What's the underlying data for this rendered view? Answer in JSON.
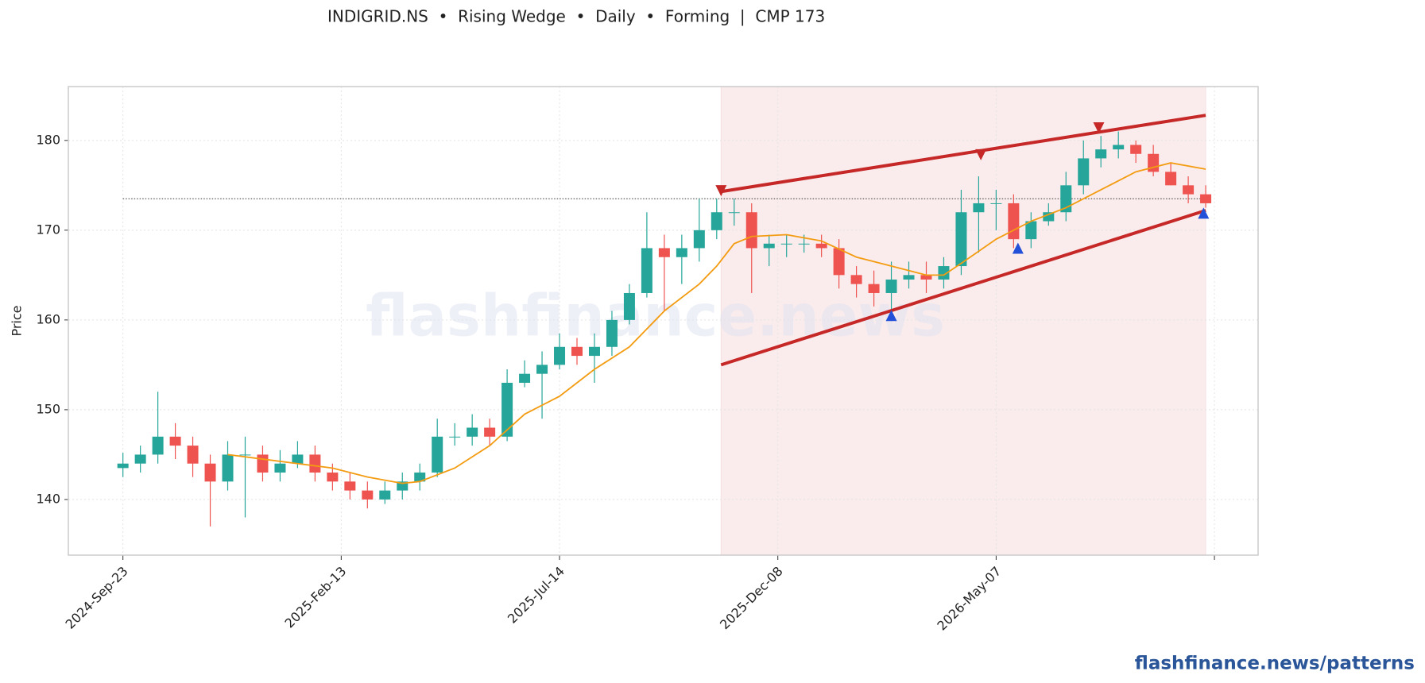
{
  "chart_data": {
    "type": "candlestick",
    "title": "INDIGRID.NS  •  Rising Wedge  •  Daily  •  Forming  |  CMP 173",
    "y_label": "Price",
    "watermark": "flashfinance.news",
    "footer": "flashfinance.news/patterns",
    "x": [
      0,
      8,
      16,
      24,
      32,
      40,
      48,
      56,
      64,
      72,
      80,
      88,
      96,
      104,
      112,
      120,
      128,
      136,
      144,
      152,
      160,
      168,
      176,
      184,
      192,
      200,
      208,
      216,
      224,
      232,
      240,
      248,
      256,
      264,
      272,
      280,
      288,
      296,
      304,
      312,
      320,
      328,
      336,
      344,
      352,
      360,
      368,
      376,
      384,
      392,
      400,
      408,
      416,
      424,
      432,
      440,
      448,
      456,
      464,
      472,
      480,
      488,
      496
    ],
    "open": [
      143.5,
      144,
      145,
      147,
      146,
      144,
      142,
      145,
      145,
      143,
      144,
      145,
      143,
      142,
      141,
      140,
      141,
      142,
      143,
      147,
      147,
      148,
      147,
      153,
      154,
      155,
      157,
      156,
      157,
      160,
      163,
      168,
      167,
      168,
      170,
      172,
      172,
      168,
      168.5,
      168.5,
      168.5,
      168,
      165,
      164,
      163,
      164.5,
      165,
      164.5,
      166,
      172,
      173,
      173,
      169,
      171,
      172,
      175,
      178,
      179,
      179.5,
      178.5,
      176.5,
      175,
      174
    ],
    "high": [
      145.2,
      146,
      152,
      148.5,
      147,
      145,
      146.5,
      147,
      146,
      145.5,
      146.5,
      146,
      144,
      143,
      142,
      142,
      143,
      144,
      149,
      148.5,
      149.5,
      149,
      154.5,
      155.5,
      156.5,
      158.5,
      158,
      158.5,
      161,
      164,
      172,
      169.5,
      169.5,
      173.5,
      173.5,
      173.5,
      173,
      169.5,
      169.5,
      169.5,
      169.5,
      169,
      166,
      165.5,
      166.5,
      166.5,
      166.5,
      167,
      174.5,
      176,
      174.5,
      174,
      172,
      173,
      176.5,
      180,
      180.5,
      181,
      180,
      179.5,
      177.5,
      176,
      175
    ],
    "low": [
      142.5,
      143,
      144,
      144.5,
      142.5,
      137,
      141,
      138,
      142,
      142,
      143.5,
      142,
      141,
      140,
      139,
      139.5,
      140,
      141,
      142.5,
      146,
      146,
      146,
      146.5,
      152.5,
      149,
      154.5,
      155,
      153,
      156,
      159.5,
      162.5,
      161,
      164,
      166.5,
      169,
      170.5,
      163,
      166,
      167,
      167.5,
      167,
      163.5,
      162.5,
      161.5,
      160.5,
      163.5,
      163,
      163.5,
      165,
      167.5,
      170,
      168,
      168,
      170.5,
      171,
      174,
      177,
      178,
      177.5,
      176,
      175,
      173,
      172.5
    ],
    "close": [
      144,
      145,
      147,
      146,
      144,
      142,
      145,
      145,
      143,
      144,
      145,
      143,
      142,
      141,
      140,
      141,
      142,
      143,
      147,
      147,
      148,
      147,
      153,
      154,
      155,
      157,
      156,
      157,
      160,
      163,
      168,
      167,
      168,
      170,
      172,
      172,
      168,
      168.5,
      168.5,
      168.5,
      168,
      165,
      164,
      163,
      164.5,
      165,
      164.5,
      166,
      172,
      173,
      173,
      169,
      171,
      172,
      175,
      178,
      179,
      179.5,
      178.5,
      176.5,
      175,
      174,
      173
    ],
    "up_color": "#26a69a",
    "down_color": "#ef5350",
    "moving_average": {
      "color": "#f39c12",
      "x": [
        48,
        64,
        80,
        96,
        112,
        128,
        136,
        152,
        168,
        184,
        200,
        216,
        232,
        248,
        264,
        272,
        280,
        288,
        304,
        320,
        336,
        352,
        368,
        376,
        384,
        400,
        416,
        432,
        448,
        464,
        480,
        496
      ],
      "values": [
        145,
        144.5,
        144,
        143.5,
        142.5,
        141.8,
        142,
        143.5,
        146,
        149.5,
        151.5,
        154.5,
        157,
        161,
        164,
        166,
        168.5,
        169.3,
        169.5,
        168.8,
        167,
        166,
        165,
        165,
        166.3,
        169,
        171,
        172.5,
        174.5,
        176.5,
        177.5,
        176.8
      ]
    },
    "trendlines": [
      {
        "color": "#c62828",
        "x": [
          274,
          496
        ],
        "values": [
          174.3,
          182.8
        ]
      },
      {
        "color": "#c62828",
        "x": [
          274,
          496
        ],
        "values": [
          155,
          172.2
        ]
      }
    ],
    "pivots_high": {
      "color": "#c62828",
      "x": [
        274,
        393,
        447
      ],
      "values": [
        174.4,
        178.4,
        181.4
      ]
    },
    "pivots_low": {
      "color": "#2350d8",
      "x": [
        352,
        410,
        495
      ],
      "values": [
        160.5,
        168,
        171.9
      ]
    },
    "pattern_range": [
      274,
      496
    ],
    "reference_line": {
      "x": [
        0,
        496
      ],
      "value": 173.5
    },
    "xlim": [
      -25,
      520
    ],
    "ylim": [
      133.8,
      186
    ],
    "xticks": [
      {
        "value": 0,
        "label": "2024-Sep-23"
      },
      {
        "value": 100,
        "label": "2025-Feb-13"
      },
      {
        "value": 200,
        "label": "2025-Jul-14"
      },
      {
        "value": 300,
        "label": "2025-Dec-08"
      },
      {
        "value": 400,
        "label": "2026-May-07"
      },
      {
        "value": 500,
        "label": null
      }
    ],
    "yticks": [
      140,
      150,
      160,
      170,
      180
    ],
    "grid": true
  }
}
